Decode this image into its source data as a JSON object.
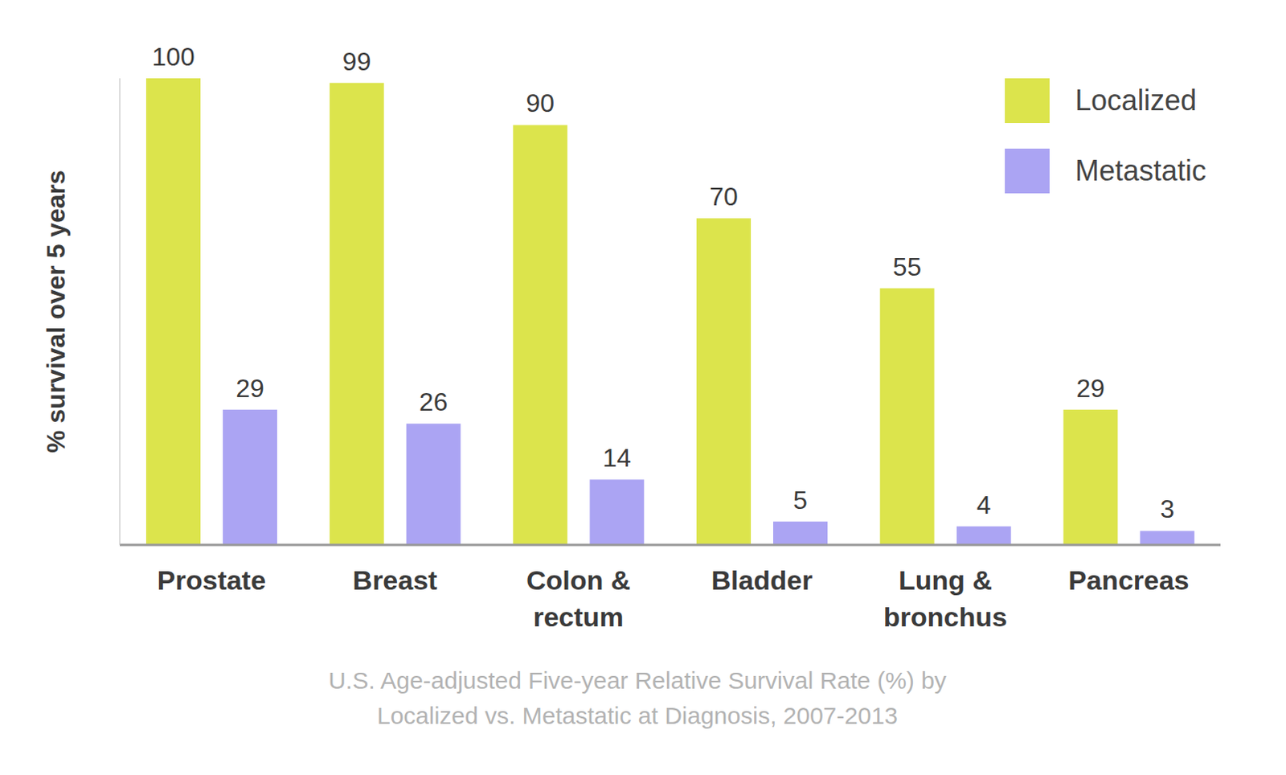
{
  "chart_data": {
    "type": "bar",
    "title": "U.S. Age-adjusted Five-year Relative Survival Rate (%) by\nLocalized vs. Metastatic at Diagnosis, 2007-2013",
    "y_label": "% survival over 5 years",
    "categories": [
      "Prostate",
      "Breast",
      "Colon & rectum",
      "Bladder",
      "Lung & bronchus",
      "Pancreas"
    ],
    "series": [
      {
        "name": "Localized",
        "color": "#dce44c",
        "values": [
          100,
          99,
          90,
          70,
          55,
          29
        ]
      },
      {
        "name": "Metastatic",
        "color": "#aba4f3",
        "values": [
          29,
          26,
          14,
          5,
          4,
          3
        ]
      }
    ],
    "ylim": [
      0,
      100
    ],
    "data_labels": true,
    "tick_labels": "x",
    "legend": "top right",
    "grid": false
  }
}
